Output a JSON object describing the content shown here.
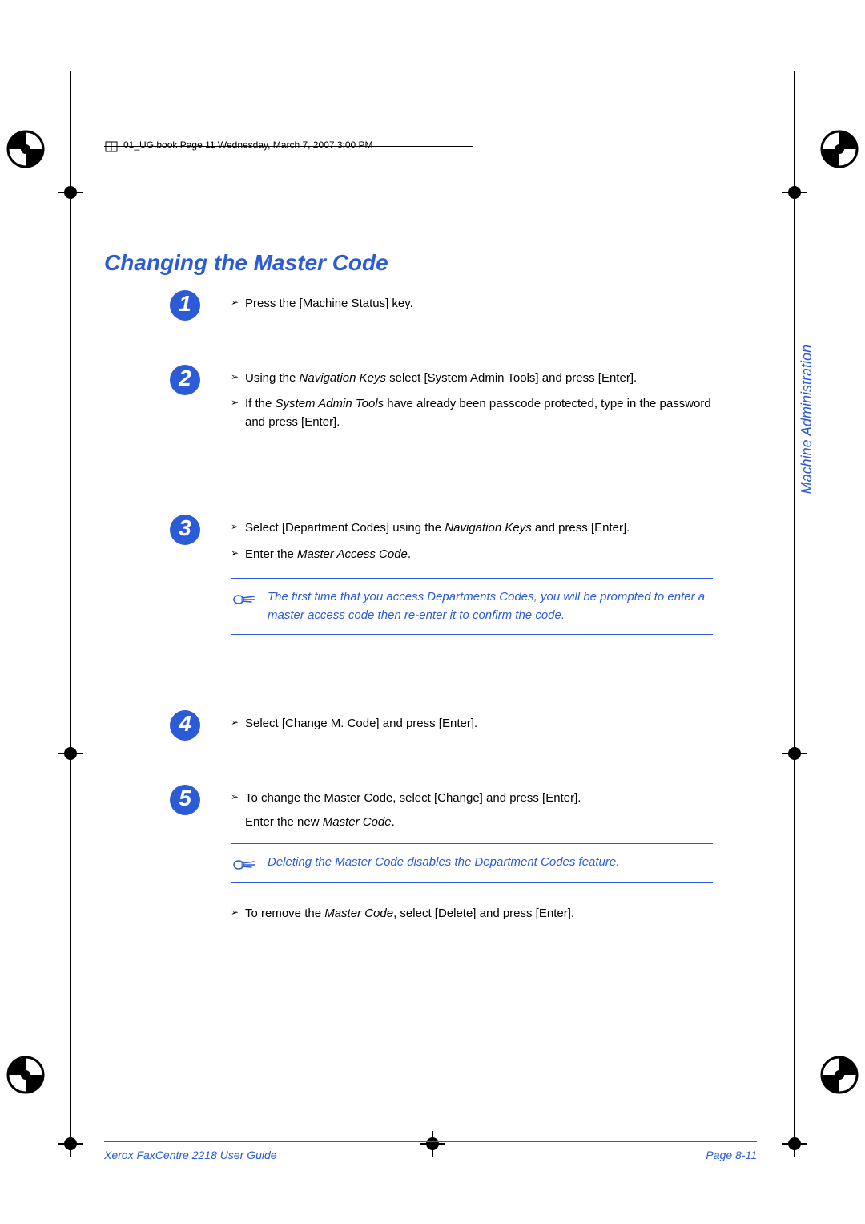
{
  "colors": {
    "accent": "#2b5bd7",
    "text": "#000000",
    "background": "#ffffff"
  },
  "header": {
    "text": "01_UG.book  Page 11  Wednesday, March 7, 2007  3:00 PM"
  },
  "title": "Changing the Master Code",
  "side_label": "Machine Administration",
  "steps": [
    {
      "num": "1",
      "bullets": [
        {
          "parts": [
            {
              "t": "Press the [Machine Status] key."
            }
          ]
        }
      ]
    },
    {
      "num": "2",
      "bullets": [
        {
          "parts": [
            {
              "t": "Using the "
            },
            {
              "t": "Navigation Keys",
              "italic": true
            },
            {
              "t": " select [System Admin Tools] and press [Enter]."
            }
          ]
        },
        {
          "parts": [
            {
              "t": "If the "
            },
            {
              "t": "System Admin Tools",
              "italic": true
            },
            {
              "t": " have already been passcode protected, type in the password and press [Enter]."
            }
          ]
        }
      ]
    },
    {
      "num": "3",
      "bullets": [
        {
          "parts": [
            {
              "t": "Select [Department Codes] using the "
            },
            {
              "t": "Navigation Keys",
              "italic": true
            },
            {
              "t": " and press [Enter]."
            }
          ]
        },
        {
          "parts": [
            {
              "t": "Enter the "
            },
            {
              "t": "Master Access Code",
              "italic": true
            },
            {
              "t": "."
            }
          ]
        }
      ],
      "note": "The first time that you access Departments Codes, you will be prompted to enter a master access code then re-enter it to confirm the code."
    },
    {
      "num": "4",
      "bullets": [
        {
          "parts": [
            {
              "t": "Select [Change M. Code] and press [Enter]."
            }
          ]
        }
      ]
    },
    {
      "num": "5",
      "bullets": [
        {
          "parts": [
            {
              "t": "To change the Master Code, select [Change] and press [Enter]."
            }
          ]
        }
      ],
      "plain_after": {
        "parts": [
          {
            "t": "Enter the new "
          },
          {
            "t": "Master Code",
            "italic": true
          },
          {
            "t": "."
          }
        ]
      },
      "note": "Deleting the Master Code disables the Department Codes feature.",
      "bullets_after": [
        {
          "parts": [
            {
              "t": "To remove the "
            },
            {
              "t": "Master Code",
              "italic": true
            },
            {
              "t": ", select [Delete] and press [Enter]."
            }
          ]
        }
      ]
    }
  ],
  "footer": {
    "left": "Xerox FaxCentre 2218 User Guide",
    "right": "Page 8-11"
  },
  "step_spacing": {
    "1": 70,
    "2": 110,
    "3": 100,
    "4": 70,
    "5": 40
  }
}
